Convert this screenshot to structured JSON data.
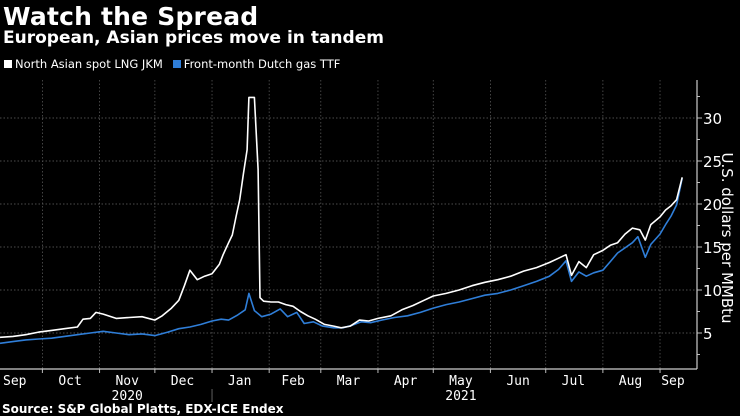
{
  "header": {
    "title": "Watch the Spread",
    "subtitle": "European, Asian prices move in tandem"
  },
  "legend": [
    {
      "label": "North Asian spot LNG JKM",
      "color": "#ffffff"
    },
    {
      "label": "Front-month Dutch gas TTF",
      "color": "#2f7ed8"
    }
  ],
  "footer": {
    "source": "Source: S&P Global Platts, EDX-ICE Endex"
  },
  "chart_data": {
    "type": "line",
    "title": "Watch the Spread",
    "subtitle": "European, Asian prices move in tandem",
    "xlabel": "",
    "ylabel": "U.S. dollars per MMBtu",
    "ylim": [
      0,
      35
    ],
    "yticks": [
      5,
      10,
      15,
      20,
      25,
      30
    ],
    "xlim": [
      "2020-09-08",
      "2021-09-14"
    ],
    "xticks": [
      {
        "label": "Sep",
        "date": "2020-09-16"
      },
      {
        "label": "Oct",
        "date": "2020-10-16"
      },
      {
        "label": "Nov",
        "date": "2020-11-16"
      },
      {
        "label": "Dec",
        "date": "2020-12-16"
      },
      {
        "label": "Jan",
        "date": "2021-01-16"
      },
      {
        "label": "Feb",
        "date": "2021-02-14"
      },
      {
        "label": "Mar",
        "date": "2021-03-16"
      },
      {
        "label": "Apr",
        "date": "2021-04-16"
      },
      {
        "label": "May",
        "date": "2021-05-16"
      },
      {
        "label": "Jun",
        "date": "2021-06-16"
      },
      {
        "label": "Jul",
        "date": "2021-07-16"
      },
      {
        "label": "Aug",
        "date": "2021-08-16"
      },
      {
        "label": "Sep",
        "date": "2021-09-08"
      }
    ],
    "gridlines_x": [
      "2020-10-01",
      "2020-11-01",
      "2020-12-01",
      "2021-01-01",
      "2021-02-01",
      "2021-03-01",
      "2021-04-01",
      "2021-05-01",
      "2021-06-01",
      "2021-07-01",
      "2021-08-01",
      "2021-09-01"
    ],
    "year_labels": [
      {
        "label": "2020",
        "date": "2020-11-16"
      },
      {
        "label": "2021",
        "date": "2021-05-16"
      }
    ],
    "year_divider": "2021-01-01",
    "grid": true,
    "y_axis_position": "right",
    "legend_position": "top-left",
    "series": [
      {
        "name": "North Asian spot LNG JKM",
        "color": "#ffffff",
        "points": [
          [
            "2020-09-08",
            4.5
          ],
          [
            "2020-09-15",
            4.6
          ],
          [
            "2020-09-22",
            4.8
          ],
          [
            "2020-09-29",
            5.1
          ],
          [
            "2020-10-06",
            5.3
          ],
          [
            "2020-10-13",
            5.5
          ],
          [
            "2020-10-20",
            5.7
          ],
          [
            "2020-10-23",
            6.6
          ],
          [
            "2020-10-27",
            6.7
          ],
          [
            "2020-10-30",
            7.4
          ],
          [
            "2020-11-03",
            7.2
          ],
          [
            "2020-11-10",
            6.7
          ],
          [
            "2020-11-17",
            6.8
          ],
          [
            "2020-11-24",
            6.9
          ],
          [
            "2020-12-01",
            6.5
          ],
          [
            "2020-12-05",
            7.0
          ],
          [
            "2020-12-10",
            7.9
          ],
          [
            "2020-12-14",
            8.8
          ],
          [
            "2020-12-17",
            10.5
          ],
          [
            "2020-12-20",
            12.3
          ],
          [
            "2020-12-24",
            11.2
          ],
          [
            "2020-12-28",
            11.6
          ],
          [
            "2021-01-01",
            11.9
          ],
          [
            "2021-01-05",
            13.0
          ],
          [
            "2021-01-07",
            14.1
          ],
          [
            "2021-01-10",
            15.5
          ],
          [
            "2021-01-12",
            16.4
          ],
          [
            "2021-01-14",
            18.5
          ],
          [
            "2021-01-16",
            20.5
          ],
          [
            "2021-01-18",
            23.5
          ],
          [
            "2021-01-20",
            26.3
          ],
          [
            "2021-01-21",
            32.4
          ],
          [
            "2021-01-24",
            32.4
          ],
          [
            "2021-01-26",
            24.0
          ],
          [
            "2021-01-27",
            9.1
          ],
          [
            "2021-01-29",
            8.7
          ],
          [
            "2021-02-02",
            8.6
          ],
          [
            "2021-02-06",
            8.6
          ],
          [
            "2021-02-10",
            8.3
          ],
          [
            "2021-02-14",
            8.1
          ],
          [
            "2021-02-18",
            7.5
          ],
          [
            "2021-02-22",
            7.0
          ],
          [
            "2021-02-26",
            6.6
          ],
          [
            "2021-03-03",
            6.0
          ],
          [
            "2021-03-08",
            5.8
          ],
          [
            "2021-03-12",
            5.6
          ],
          [
            "2021-03-17",
            5.8
          ],
          [
            "2021-03-22",
            6.5
          ],
          [
            "2021-03-27",
            6.4
          ],
          [
            "2021-04-01",
            6.7
          ],
          [
            "2021-04-08",
            7.0
          ],
          [
            "2021-04-14",
            7.7
          ],
          [
            "2021-04-20",
            8.2
          ],
          [
            "2021-04-26",
            8.8
          ],
          [
            "2021-05-01",
            9.3
          ],
          [
            "2021-05-08",
            9.6
          ],
          [
            "2021-05-15",
            10.0
          ],
          [
            "2021-05-22",
            10.5
          ],
          [
            "2021-05-29",
            10.9
          ],
          [
            "2021-06-05",
            11.2
          ],
          [
            "2021-06-12",
            11.6
          ],
          [
            "2021-06-19",
            12.2
          ],
          [
            "2021-06-26",
            12.6
          ],
          [
            "2021-07-03",
            13.2
          ],
          [
            "2021-07-08",
            13.7
          ],
          [
            "2021-07-12",
            14.1
          ],
          [
            "2021-07-15",
            11.7
          ],
          [
            "2021-07-19",
            13.3
          ],
          [
            "2021-07-23",
            12.6
          ],
          [
            "2021-07-27",
            14.1
          ],
          [
            "2021-08-01",
            14.6
          ],
          [
            "2021-08-05",
            15.2
          ],
          [
            "2021-08-09",
            15.5
          ],
          [
            "2021-08-13",
            16.5
          ],
          [
            "2021-08-17",
            17.2
          ],
          [
            "2021-08-21",
            17.0
          ],
          [
            "2021-08-24",
            15.8
          ],
          [
            "2021-08-27",
            17.6
          ],
          [
            "2021-09-01",
            18.5
          ],
          [
            "2021-09-04",
            19.3
          ],
          [
            "2021-09-07",
            19.8
          ],
          [
            "2021-09-10",
            20.5
          ],
          [
            "2021-09-13",
            23.1
          ]
        ]
      },
      {
        "name": "Front-month Dutch gas TTF",
        "color": "#2f7ed8",
        "points": [
          [
            "2020-09-08",
            3.8
          ],
          [
            "2020-09-15",
            4.0
          ],
          [
            "2020-09-22",
            4.2
          ],
          [
            "2020-09-29",
            4.3
          ],
          [
            "2020-10-06",
            4.4
          ],
          [
            "2020-10-13",
            4.6
          ],
          [
            "2020-10-20",
            4.8
          ],
          [
            "2020-10-27",
            5.0
          ],
          [
            "2020-11-03",
            5.2
          ],
          [
            "2020-11-10",
            5.0
          ],
          [
            "2020-11-17",
            4.8
          ],
          [
            "2020-11-24",
            4.9
          ],
          [
            "2020-12-01",
            4.7
          ],
          [
            "2020-12-08",
            5.1
          ],
          [
            "2020-12-14",
            5.5
          ],
          [
            "2020-12-20",
            5.7
          ],
          [
            "2020-12-26",
            6.0
          ],
          [
            "2021-01-01",
            6.4
          ],
          [
            "2021-01-06",
            6.6
          ],
          [
            "2021-01-10",
            6.5
          ],
          [
            "2021-01-15",
            7.1
          ],
          [
            "2021-01-19",
            7.7
          ],
          [
            "2021-01-21",
            9.6
          ],
          [
            "2021-01-24",
            7.6
          ],
          [
            "2021-01-28",
            6.9
          ],
          [
            "2021-02-02",
            7.2
          ],
          [
            "2021-02-07",
            7.8
          ],
          [
            "2021-02-11",
            6.9
          ],
          [
            "2021-02-16",
            7.4
          ],
          [
            "2021-02-20",
            6.1
          ],
          [
            "2021-02-25",
            6.3
          ],
          [
            "2021-03-02",
            5.8
          ],
          [
            "2021-03-08",
            5.6
          ],
          [
            "2021-03-13",
            5.6
          ],
          [
            "2021-03-18",
            5.9
          ],
          [
            "2021-03-23",
            6.3
          ],
          [
            "2021-03-28",
            6.2
          ],
          [
            "2021-04-03",
            6.5
          ],
          [
            "2021-04-10",
            6.8
          ],
          [
            "2021-04-17",
            7.0
          ],
          [
            "2021-04-24",
            7.4
          ],
          [
            "2021-05-01",
            7.9
          ],
          [
            "2021-05-08",
            8.3
          ],
          [
            "2021-05-15",
            8.6
          ],
          [
            "2021-05-22",
            9.0
          ],
          [
            "2021-05-29",
            9.4
          ],
          [
            "2021-06-05",
            9.6
          ],
          [
            "2021-06-12",
            10.0
          ],
          [
            "2021-06-19",
            10.5
          ],
          [
            "2021-06-26",
            11.0
          ],
          [
            "2021-07-03",
            11.6
          ],
          [
            "2021-07-08",
            12.4
          ],
          [
            "2021-07-12",
            13.4
          ],
          [
            "2021-07-15",
            11.0
          ],
          [
            "2021-07-19",
            12.1
          ],
          [
            "2021-07-23",
            11.6
          ],
          [
            "2021-07-27",
            12.0
          ],
          [
            "2021-08-01",
            12.3
          ],
          [
            "2021-08-05",
            13.3
          ],
          [
            "2021-08-09",
            14.3
          ],
          [
            "2021-08-13",
            14.9
          ],
          [
            "2021-08-17",
            15.5
          ],
          [
            "2021-08-20",
            16.2
          ],
          [
            "2021-08-24",
            13.8
          ],
          [
            "2021-08-27",
            15.3
          ],
          [
            "2021-09-01",
            16.5
          ],
          [
            "2021-09-04",
            17.6
          ],
          [
            "2021-09-07",
            18.6
          ],
          [
            "2021-09-10",
            19.9
          ],
          [
            "2021-09-13",
            23.0
          ]
        ]
      }
    ]
  }
}
